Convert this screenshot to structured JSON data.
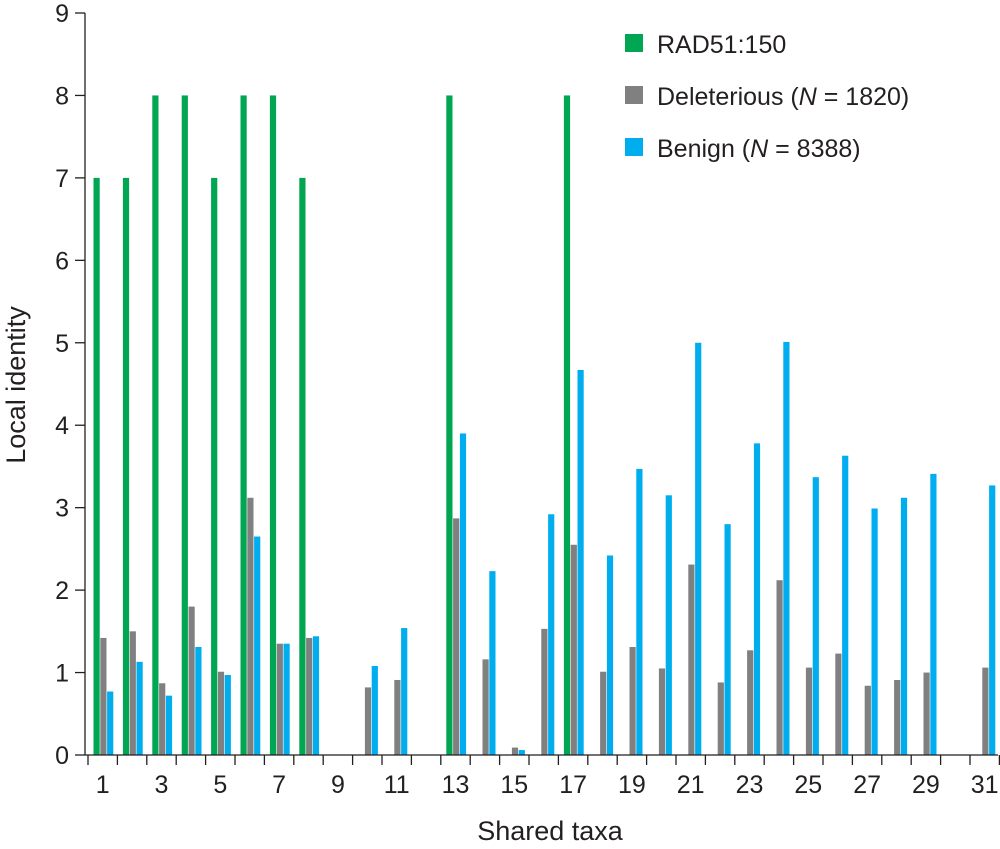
{
  "chart_data": {
    "type": "bar",
    "xlabel": "Shared taxa",
    "ylabel": "Local identity",
    "ylim": [
      0,
      9
    ],
    "yticks": [
      "0",
      "1",
      "2",
      "3",
      "4",
      "5",
      "6",
      "7",
      "8",
      "9"
    ],
    "x": [
      1,
      2,
      3,
      4,
      5,
      6,
      7,
      8,
      9,
      10,
      11,
      12,
      13,
      14,
      15,
      16,
      17,
      18,
      19,
      20,
      21,
      22,
      23,
      24,
      25,
      26,
      27,
      28,
      29,
      30,
      31
    ],
    "xtick_labels": [
      "1",
      "3",
      "5",
      "7",
      "9",
      "11",
      "13",
      "15",
      "17",
      "19",
      "21",
      "23",
      "25",
      "27",
      "29",
      "31"
    ],
    "legend_position": "top-right",
    "series": [
      {
        "name": "RAD51:150",
        "color": "#00a651",
        "values": [
          7,
          7,
          8,
          8,
          7,
          8,
          8,
          7,
          0,
          0,
          0,
          0,
          8,
          0,
          0,
          0,
          8,
          0,
          0,
          0,
          0,
          0,
          0,
          0,
          0,
          0,
          0,
          0,
          0,
          0,
          0
        ]
      },
      {
        "name": "Deleterious",
        "n_value": "1820",
        "color": "#808080",
        "values": [
          1.42,
          1.5,
          0.87,
          1.8,
          1.01,
          3.12,
          1.35,
          1.42,
          0,
          0.82,
          0.91,
          0,
          2.87,
          1.16,
          0.09,
          1.53,
          2.55,
          1.01,
          1.31,
          1.05,
          2.31,
          0.88,
          1.27,
          2.12,
          1.06,
          1.23,
          0.84,
          0.91,
          1.0,
          0,
          1.06
        ]
      },
      {
        "name": "Benign",
        "n_value": "8388",
        "color": "#00aeef",
        "values": [
          0.77,
          1.13,
          0.72,
          1.31,
          0.97,
          2.65,
          1.35,
          1.44,
          0,
          1.08,
          1.54,
          0,
          3.9,
          2.23,
          0.06,
          2.92,
          4.67,
          2.42,
          3.47,
          3.15,
          5.0,
          2.8,
          3.78,
          5.01,
          3.37,
          3.63,
          2.99,
          3.12,
          3.41,
          0,
          3.27
        ]
      }
    ],
    "legend": [
      {
        "label": "RAD51:150",
        "prefix": "",
        "italic": "",
        "suffix": ""
      },
      {
        "label": "Deleterious",
        "prefix": "Deleterious (",
        "italic": "N",
        "suffix": " = 1820)"
      },
      {
        "label": "Benign",
        "prefix": "Benign (",
        "italic": "N",
        "suffix": " = 8388)"
      }
    ]
  }
}
